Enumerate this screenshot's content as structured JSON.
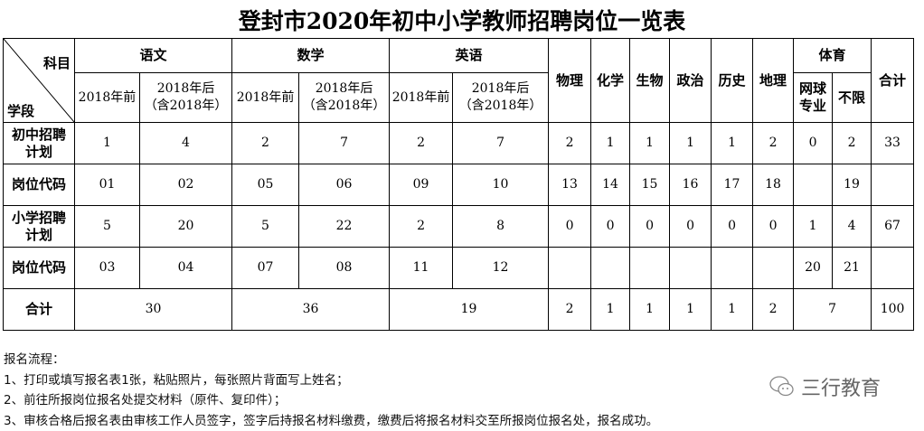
{
  "title": "登封市2020年初中小学教师招聘岗位一览表",
  "header": {
    "subject_label": "科目",
    "stage_label": "学段",
    "subjects": [
      "语文",
      "数学",
      "英语"
    ],
    "before": "2018年前",
    "after1": "2018年后",
    "after2": "（含2018年）",
    "singles": [
      "物理",
      "化学",
      "生物",
      "政治",
      "历史",
      "地理"
    ],
    "pe": "体育",
    "pe_sub": [
      "网球专业",
      "不限"
    ],
    "total": "合计"
  },
  "rows": [
    {
      "label": "初中招聘计划",
      "cells": [
        "1",
        "4",
        "2",
        "7",
        "2",
        "7",
        "2",
        "1",
        "1",
        "1",
        "1",
        "2",
        "0",
        "2",
        "33"
      ]
    },
    {
      "label": "岗位代码",
      "cells": [
        "01",
        "02",
        "05",
        "06",
        "09",
        "10",
        "13",
        "14",
        "15",
        "16",
        "17",
        "18",
        "",
        "19",
        ""
      ]
    },
    {
      "label": "小学招聘计划",
      "cells": [
        "5",
        "20",
        "5",
        "22",
        "2",
        "8",
        "0",
        "0",
        "0",
        "0",
        "0",
        "0",
        "1",
        "4",
        "67"
      ]
    },
    {
      "label": "岗位代码",
      "cells": [
        "03",
        "04",
        "07",
        "08",
        "11",
        "12",
        "",
        "",
        "",
        "",
        "",
        "",
        "20",
        "21",
        ""
      ]
    }
  ],
  "total_row": {
    "label": "合计",
    "chinese": "30",
    "math": "36",
    "english": "19",
    "singles": [
      "2",
      "1",
      "1",
      "1",
      "1",
      "2"
    ],
    "pe": "7",
    "total": "100"
  },
  "notes": [
    "报名流程：",
    "1、打印或填写报名表1张，粘贴照片，每张照片背面写上姓名；",
    "2、前往所报岗位报名处提交材料（原件、复印件）；",
    "3、审核合格后报名表由审核工作人员签字，签字后持报名材料缴费，缴费后将报名材料交至所报岗位报名处，报名成功。"
  ],
  "watermark": "三行教育"
}
